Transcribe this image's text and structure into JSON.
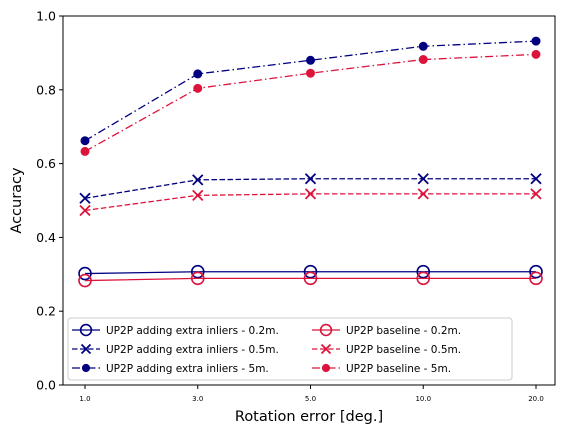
{
  "chart_data": {
    "type": "line",
    "title": "",
    "xlabel": "Rotation error [deg.]",
    "ylabel": "Accuracy",
    "categories": [
      "1.0",
      "3.0",
      "5.0",
      "10.0",
      "20.0"
    ],
    "ylim": [
      0.0,
      1.0
    ],
    "yticks": [
      "0.0",
      "0.2",
      "0.4",
      "0.6",
      "0.8",
      "1.0"
    ],
    "grid": false,
    "legend_position": "lower-center",
    "series": [
      {
        "name": "UP2P adding extra inliers - 0.2m.",
        "values": [
          0.302,
          0.307,
          0.307,
          0.307,
          0.307
        ],
        "color": "#000080",
        "linestyle": "solid",
        "marker": "open-circle"
      },
      {
        "name": "UP2P adding extra inliers - 0.5m.",
        "values": [
          0.506,
          0.556,
          0.559,
          0.559,
          0.559
        ],
        "color": "#000080",
        "linestyle": "dashed",
        "marker": "x"
      },
      {
        "name": "UP2P adding extra inliers - 5m.",
        "values": [
          0.662,
          0.843,
          0.88,
          0.918,
          0.932
        ],
        "color": "#000080",
        "linestyle": "dashdot",
        "marker": "filled-circle"
      },
      {
        "name": "UP2P baseline - 0.2m.",
        "values": [
          0.283,
          0.289,
          0.289,
          0.289,
          0.289
        ],
        "color": "#dc143c",
        "linestyle": "solid",
        "marker": "open-circle"
      },
      {
        "name": "UP2P baseline - 0.5m.",
        "values": [
          0.473,
          0.514,
          0.518,
          0.518,
          0.518
        ],
        "color": "#dc143c",
        "linestyle": "dashed",
        "marker": "x"
      },
      {
        "name": "UP2P baseline - 5m.",
        "values": [
          0.633,
          0.804,
          0.845,
          0.882,
          0.896
        ],
        "color": "#dc143c",
        "linestyle": "dashdot",
        "marker": "filled-circle"
      }
    ]
  }
}
